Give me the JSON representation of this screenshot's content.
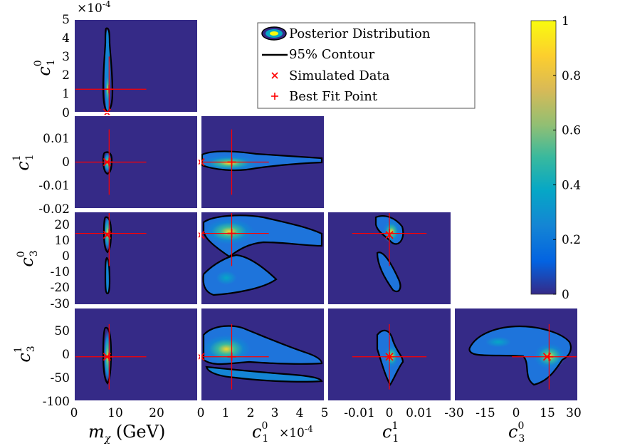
{
  "chart_data": {
    "type": "heatmap",
    "title": "",
    "description_kind": "corner-plot",
    "parameters": [
      {
        "symbol": "m",
        "sub": "χ",
        "unit": " (GeV)",
        "range": [
          0,
          30
        ],
        "ticks": [
          0,
          10,
          20
        ],
        "scale_label": ""
      },
      {
        "symbol": "c",
        "sub": "1",
        "sup": "0",
        "range": [
          0,
          0.0005
        ],
        "ticks": [
          0,
          1,
          2,
          3,
          4,
          5
        ],
        "scale_label": "×10",
        "scale_exp": "-4"
      },
      {
        "symbol": "c",
        "sub": "1",
        "sup": "1",
        "range": [
          -0.02,
          0.02
        ],
        "ticks": [
          -0.02,
          -0.01,
          0,
          0.01
        ],
        "scale_label": ""
      },
      {
        "symbol": "c",
        "sub": "3",
        "sup": "0",
        "range": [
          -30,
          30
        ],
        "ticks": [
          -30,
          -20,
          -10,
          0,
          10,
          20
        ],
        "scale_label": ""
      },
      {
        "symbol": "c",
        "sub": "3",
        "sup": "1",
        "range": [
          -100,
          100
        ],
        "ticks": [
          -100,
          -50,
          0,
          50
        ],
        "scale_label": ""
      }
    ],
    "x_tick_labels": [
      [
        "0",
        "10",
        "20"
      ],
      [
        "0",
        "1",
        "2",
        "3",
        "4",
        "5"
      ],
      [
        "-0.01",
        "0",
        "0.01"
      ],
      [
        "-30",
        "-15",
        "0",
        "15",
        "30"
      ]
    ],
    "y_tick_labels": [
      [
        "5",
        "4",
        "3",
        "2",
        "1",
        "0"
      ],
      [
        "0.01",
        "0",
        "-0.01",
        "-0.02"
      ],
      [
        "20",
        "10",
        "0",
        "-10",
        "-20",
        "-30"
      ],
      [
        "50",
        "0",
        "-50",
        "-100"
      ]
    ],
    "simulated_data": {
      "m_chi": 8,
      "c1_0": 0.0,
      "c1_1": 0.0,
      "c3_0": 15,
      "c3_1": -5
    },
    "best_fit": {
      "m_chi": 8.5,
      "c1_0": 0.000125,
      "c1_1": 0.0,
      "c3_0": 16,
      "c3_1": -5
    },
    "legend": {
      "position": "top",
      "entries": [
        {
          "label": "Posterior Distribution",
          "marker": "ellipse"
        },
        {
          "label": "95% Contour",
          "marker": "line"
        },
        {
          "label": "Simulated Data",
          "marker": "x"
        },
        {
          "label": "Best Fit Point",
          "marker": "plus"
        }
      ]
    },
    "colorbar": {
      "range": [
        0,
        1
      ],
      "tick_labels": [
        "0",
        "0.2",
        "0.4",
        "0.6",
        "0.8",
        "1"
      ]
    },
    "panels": [
      {
        "row": 0,
        "col": 0,
        "x": "m_chi",
        "y": "c1_0"
      },
      {
        "row": 1,
        "col": 0,
        "x": "m_chi",
        "y": "c1_1"
      },
      {
        "row": 1,
        "col": 1,
        "x": "c1_0",
        "y": "c1_1"
      },
      {
        "row": 2,
        "col": 0,
        "x": "m_chi",
        "y": "c3_0"
      },
      {
        "row": 2,
        "col": 1,
        "x": "c1_0",
        "y": "c3_0"
      },
      {
        "row": 2,
        "col": 2,
        "x": "c1_1",
        "y": "c3_0"
      },
      {
        "row": 3,
        "col": 0,
        "x": "m_chi",
        "y": "c3_1"
      },
      {
        "row": 3,
        "col": 1,
        "x": "c1_0",
        "y": "c3_1"
      },
      {
        "row": 3,
        "col": 2,
        "x": "c1_1",
        "y": "c3_1"
      },
      {
        "row": 3,
        "col": 3,
        "x": "c3_0",
        "y": "c3_1"
      }
    ],
    "colors": {
      "background": "#352a87",
      "contour": "#000000",
      "marker": "#ff0000",
      "frame": "#ffffff"
    }
  }
}
